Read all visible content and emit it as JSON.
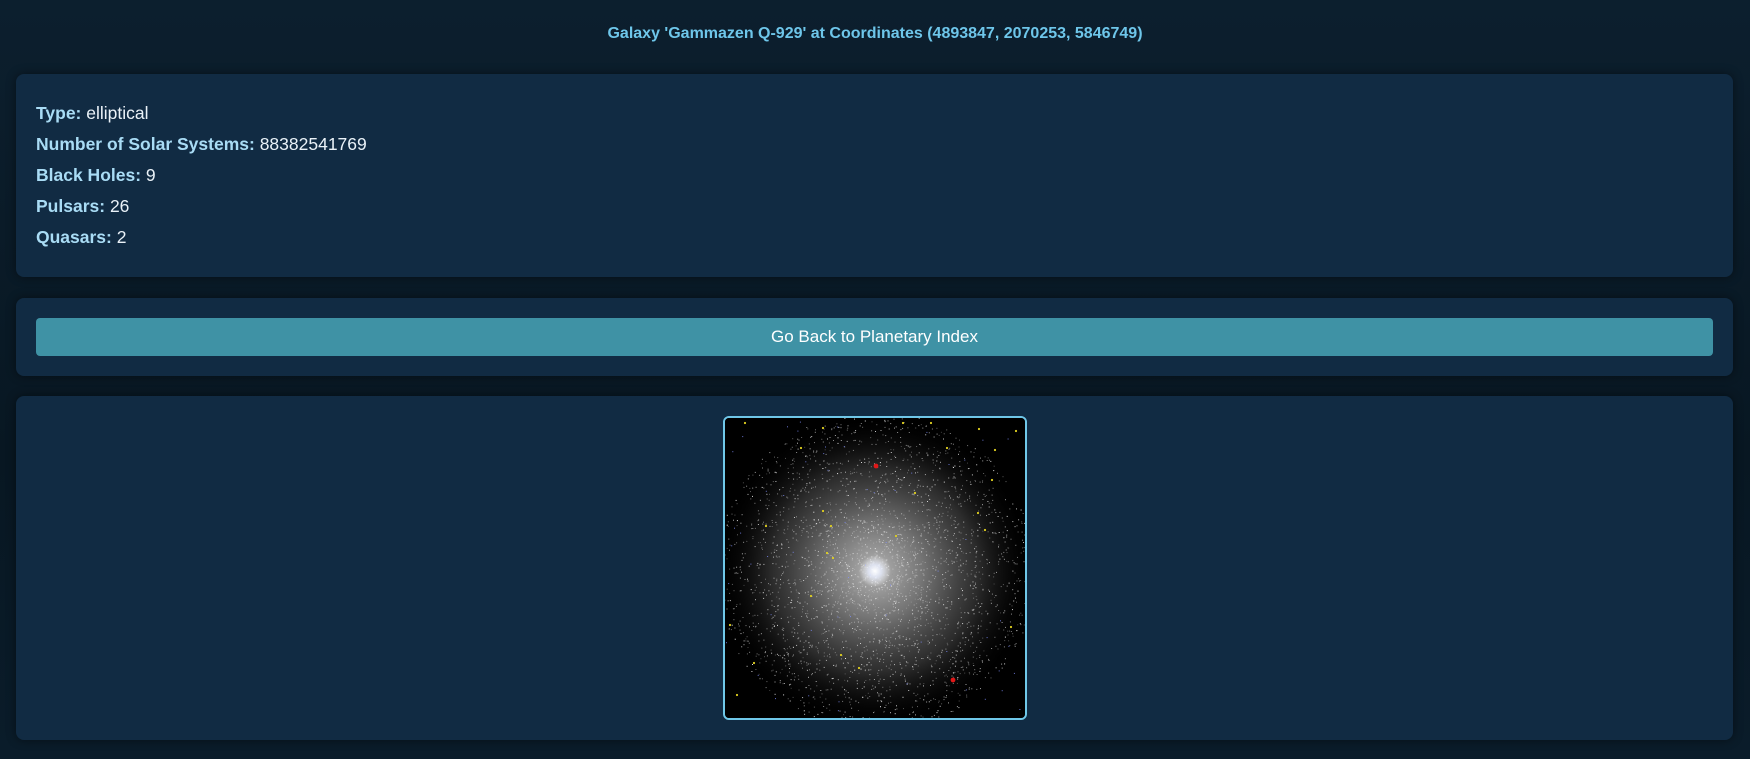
{
  "page": {
    "title": "Galaxy 'Gammazen Q-929' at Coordinates (4893847, 2070253, 5846749)"
  },
  "info": {
    "type_label": "Type:",
    "type_value": "elliptical",
    "solar_label": "Number of Solar Systems:",
    "solar_value": "88382541769",
    "blackholes_label": "Black Holes:",
    "blackholes_value": "9",
    "pulsars_label": "Pulsars:",
    "pulsars_value": "26",
    "quasars_label": "Quasars:",
    "quasars_value": "2"
  },
  "nav": {
    "back_label": "Go Back to Planetary Index"
  },
  "colors": {
    "accent": "#6ec6ea",
    "panel": "#112b43",
    "button": "#3f92a5",
    "label": "#a9dcf5",
    "pulsar": "#e0d020",
    "quasar": "#e01818"
  }
}
